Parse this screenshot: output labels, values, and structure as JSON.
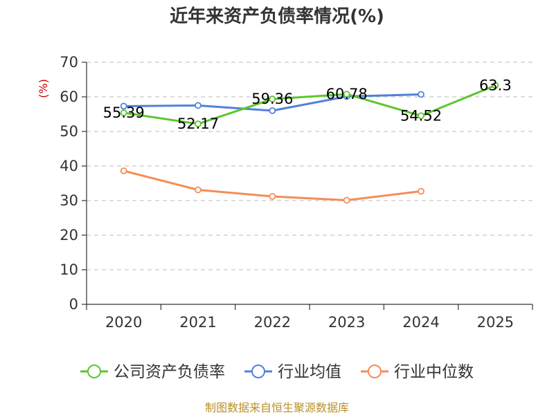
{
  "chart_data": {
    "type": "line",
    "title": "近年来资产负债率情况(%)",
    "ylabel": "(%)",
    "xlabel": "",
    "categories": [
      "2020",
      "2021",
      "2022",
      "2023",
      "2024",
      "2025"
    ],
    "ylim": [
      0,
      70
    ],
    "yticks": [
      0,
      10,
      20,
      30,
      40,
      50,
      60,
      70
    ],
    "grid": true,
    "legend_position": "bottom",
    "series": [
      {
        "name": "公司资产负债率",
        "color": "#5cc62c",
        "values": [
          55.39,
          52.17,
          59.36,
          60.78,
          54.52,
          63.3
        ],
        "labels": [
          "55.39",
          "52.17",
          "59.36",
          "60.78",
          "54.52",
          "63.3"
        ]
      },
      {
        "name": "行业均值",
        "color": "#4f81db",
        "values": [
          57.3,
          57.5,
          56.0,
          60.1,
          60.7,
          null
        ],
        "labels": []
      },
      {
        "name": "行业中位数",
        "color": "#f58c55",
        "values": [
          38.6,
          33.1,
          31.2,
          30.1,
          32.7,
          null
        ],
        "labels": []
      }
    ],
    "source": "制图数据来自恒生聚源数据库"
  }
}
